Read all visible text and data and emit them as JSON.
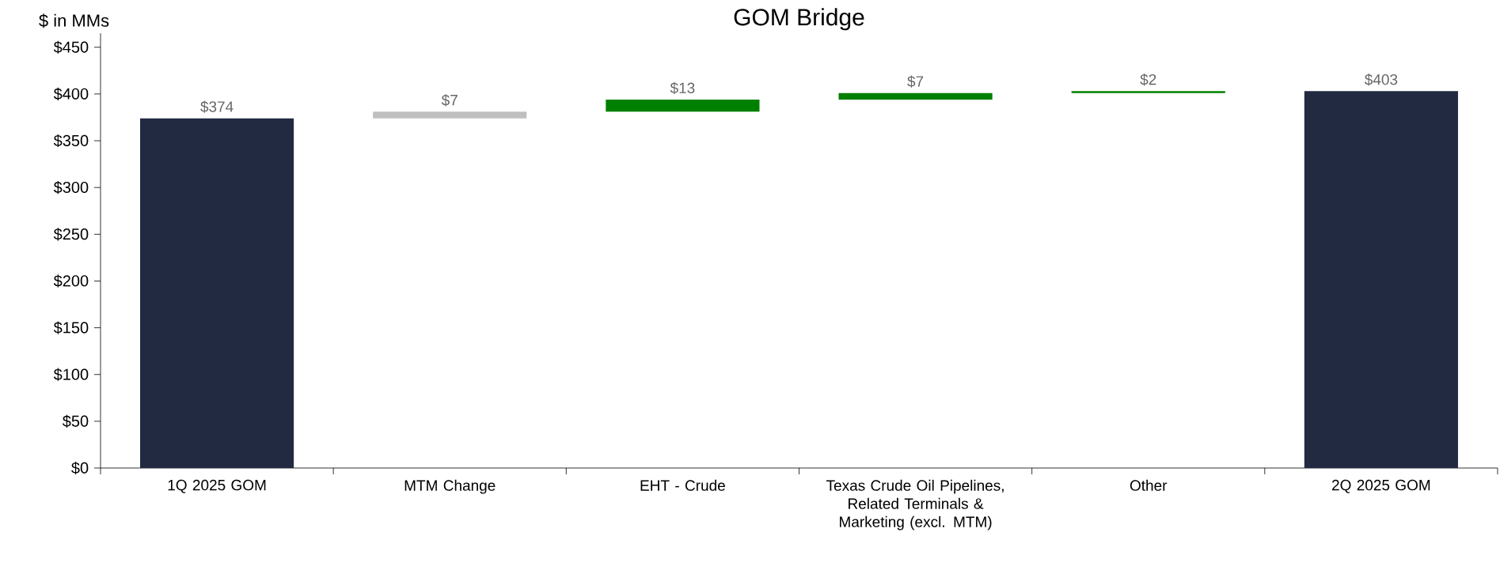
{
  "chart_data": {
    "type": "bar",
    "title": "GOM Bridge",
    "ylabel": "$ in MMs",
    "categories": [
      "1Q 2025 GOM",
      "MTM Change",
      "EHT - Crude",
      "Texas Crude Oil Pipelines, Related Terminals & Marketing (excl. MTM)",
      "Other",
      "2Q 2025 GOM"
    ],
    "values": [
      374,
      7,
      13,
      7,
      2,
      403
    ],
    "base": [
      0,
      374,
      381,
      394,
      401,
      0
    ],
    "colors": [
      "#222a42",
      "#bfbfbf",
      "#008000",
      "#008000",
      "#008000",
      "#222a42"
    ],
    "value_labels": [
      "$374",
      "$7",
      "$13",
      "$7",
      "$2",
      "$403"
    ],
    "ylim": [
      0,
      465
    ],
    "yticks": [
      {
        "value": 0,
        "label": "$0"
      },
      {
        "value": 50,
        "label": "$50"
      },
      {
        "value": 100,
        "label": "$100"
      },
      {
        "value": 150,
        "label": "$150"
      },
      {
        "value": 200,
        "label": "$200"
      },
      {
        "value": 250,
        "label": "$250"
      },
      {
        "value": 300,
        "label": "$300"
      },
      {
        "value": 350,
        "label": "$350"
      },
      {
        "value": 400,
        "label": "$400"
      },
      {
        "value": 450,
        "label": "$450"
      }
    ],
    "grid": false
  }
}
